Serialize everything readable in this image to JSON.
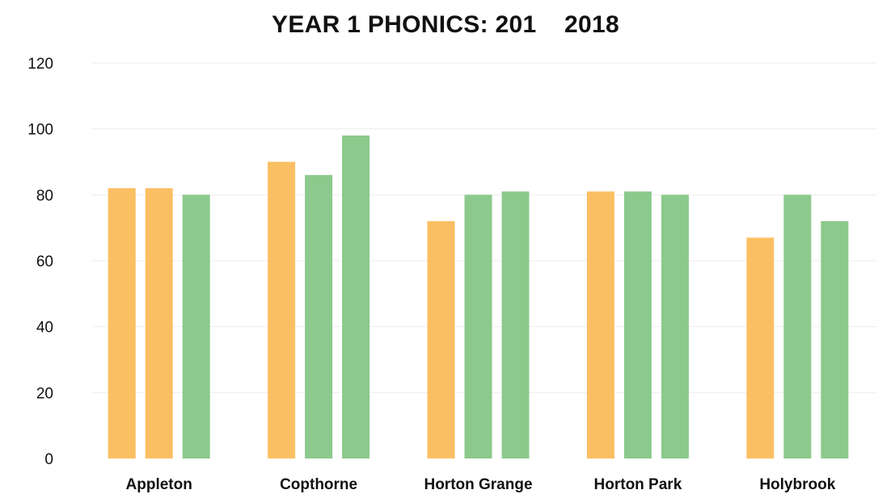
{
  "chart_data": {
    "type": "bar",
    "title": "YEAR 1 PHONICS: 201    2018",
    "xlabel": "",
    "ylabel": "",
    "ylim": [
      0,
      120
    ],
    "yticks": [
      0,
      20,
      40,
      60,
      80,
      100,
      120
    ],
    "grid": true,
    "legend": "none",
    "categories": [
      "Appleton",
      "Copthorne",
      "Horton Grange",
      "Horton Park",
      "Holybrook"
    ],
    "series": [
      {
        "values": [
          82,
          90,
          72,
          81,
          67
        ],
        "color": "#fbbf63"
      },
      {
        "values": [
          82,
          86,
          80,
          81,
          80
        ],
        "color": "#fbbf63"
      },
      {
        "values": [
          80,
          98,
          81,
          80,
          72
        ],
        "color": "#8cc98c"
      }
    ],
    "bar_colors": [
      [
        "#fbbf63",
        "#fbbf63",
        "#fbbf63",
        "#fbbf63",
        "#fbbf63"
      ],
      [
        "#fbbf63",
        "#8cc98c",
        "#8cc98c",
        "#8cc98c",
        "#8cc98c"
      ],
      [
        "#8cc98c",
        "#8cc98c",
        "#8cc98c",
        "#8cc98c",
        "#8cc98c"
      ]
    ]
  }
}
